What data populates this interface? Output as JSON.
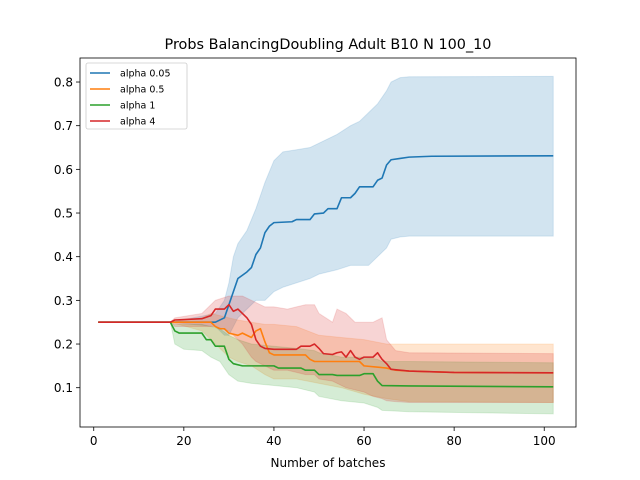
{
  "chart_data": {
    "type": "line",
    "title": "Probs BalancingDoubling Adult B10 N 100_10",
    "xlabel": "Number of batches",
    "ylabel": "",
    "xlim": [
      -3.05,
      107.05
    ],
    "ylim": [
      0.01,
      0.855
    ],
    "xticks": [
      0,
      20,
      40,
      60,
      80,
      100
    ],
    "yticks": [
      0.1,
      0.2,
      0.3,
      0.4,
      0.5,
      0.6,
      0.7,
      0.8
    ],
    "legend": {
      "placement": "top-left"
    },
    "grid": false,
    "series": [
      {
        "name": "alpha 0.05",
        "color": "#1f77b4",
        "mean": [
          [
            1,
            0.25
          ],
          [
            17,
            0.25
          ],
          [
            27,
            0.25
          ],
          [
            29,
            0.26
          ],
          [
            30,
            0.29
          ],
          [
            31,
            0.32
          ],
          [
            32,
            0.35
          ],
          [
            34,
            0.365
          ],
          [
            35,
            0.375
          ],
          [
            36,
            0.405
          ],
          [
            37,
            0.42
          ],
          [
            38,
            0.455
          ],
          [
            39,
            0.47
          ],
          [
            40,
            0.478
          ],
          [
            44,
            0.48
          ],
          [
            45,
            0.485
          ],
          [
            48,
            0.485
          ],
          [
            49,
            0.498
          ],
          [
            51,
            0.5
          ],
          [
            52,
            0.51
          ],
          [
            54,
            0.51
          ],
          [
            55,
            0.535
          ],
          [
            57,
            0.535
          ],
          [
            58,
            0.545
          ],
          [
            59,
            0.56
          ],
          [
            62,
            0.56
          ],
          [
            63,
            0.575
          ],
          [
            64,
            0.58
          ],
          [
            65,
            0.61
          ],
          [
            66,
            0.622
          ],
          [
            68,
            0.625
          ],
          [
            70,
            0.628
          ],
          [
            75,
            0.63
          ],
          [
            102,
            0.631
          ]
        ],
        "band": [
          [
            1,
            0.25,
            0.25
          ],
          [
            17,
            0.25,
            0.25
          ],
          [
            27,
            0.24,
            0.27
          ],
          [
            29,
            0.22,
            0.3
          ],
          [
            30,
            0.22,
            0.34
          ],
          [
            31,
            0.24,
            0.4
          ],
          [
            32,
            0.26,
            0.43
          ],
          [
            34,
            0.28,
            0.46
          ],
          [
            36,
            0.3,
            0.51
          ],
          [
            38,
            0.3,
            0.57
          ],
          [
            40,
            0.32,
            0.62
          ],
          [
            42,
            0.33,
            0.64
          ],
          [
            45,
            0.34,
            0.645
          ],
          [
            48,
            0.35,
            0.65
          ],
          [
            50,
            0.36,
            0.66
          ],
          [
            54,
            0.37,
            0.68
          ],
          [
            57,
            0.38,
            0.7
          ],
          [
            59,
            0.38,
            0.71
          ],
          [
            61,
            0.38,
            0.73
          ],
          [
            63,
            0.4,
            0.75
          ],
          [
            65,
            0.42,
            0.78
          ],
          [
            66,
            0.44,
            0.8
          ],
          [
            68,
            0.445,
            0.81
          ],
          [
            70,
            0.447,
            0.812
          ],
          [
            102,
            0.447,
            0.813
          ]
        ]
      },
      {
        "name": "alpha 0.5",
        "color": "#ff7f0e",
        "mean": [
          [
            1,
            0.25
          ],
          [
            17,
            0.25
          ],
          [
            24,
            0.25
          ],
          [
            26,
            0.25
          ],
          [
            27,
            0.24
          ],
          [
            28,
            0.235
          ],
          [
            29,
            0.235
          ],
          [
            30,
            0.225
          ],
          [
            32,
            0.22
          ],
          [
            33,
            0.225
          ],
          [
            35,
            0.215
          ],
          [
            36,
            0.23
          ],
          [
            37,
            0.235
          ],
          [
            38,
            0.205
          ],
          [
            39,
            0.18
          ],
          [
            40,
            0.175
          ],
          [
            47,
            0.175
          ],
          [
            48,
            0.165
          ],
          [
            49,
            0.16
          ],
          [
            59,
            0.16
          ],
          [
            60,
            0.15
          ],
          [
            65,
            0.145
          ],
          [
            67,
            0.14
          ],
          [
            70,
            0.138
          ],
          [
            80,
            0.135
          ],
          [
            102,
            0.134
          ]
        ],
        "band": [
          [
            1,
            0.25,
            0.25
          ],
          [
            17,
            0.25,
            0.25
          ],
          [
            24,
            0.23,
            0.26
          ],
          [
            26,
            0.21,
            0.27
          ],
          [
            28,
            0.19,
            0.265
          ],
          [
            30,
            0.17,
            0.26
          ],
          [
            32,
            0.16,
            0.255
          ],
          [
            35,
            0.15,
            0.25
          ],
          [
            38,
            0.13,
            0.245
          ],
          [
            40,
            0.12,
            0.245
          ],
          [
            45,
            0.12,
            0.24
          ],
          [
            50,
            0.11,
            0.22
          ],
          [
            55,
            0.1,
            0.215
          ],
          [
            60,
            0.085,
            0.21
          ],
          [
            65,
            0.075,
            0.2
          ],
          [
            70,
            0.068,
            0.2
          ],
          [
            102,
            0.066,
            0.2
          ]
        ]
      },
      {
        "name": "alpha 1",
        "color": "#2ca02c",
        "mean": [
          [
            1,
            0.25
          ],
          [
            17,
            0.25
          ],
          [
            18,
            0.23
          ],
          [
            19,
            0.225
          ],
          [
            24,
            0.225
          ],
          [
            25,
            0.21
          ],
          [
            26,
            0.21
          ],
          [
            27,
            0.195
          ],
          [
            29,
            0.195
          ],
          [
            30,
            0.165
          ],
          [
            31,
            0.155
          ],
          [
            33,
            0.15
          ],
          [
            40,
            0.15
          ],
          [
            41,
            0.145
          ],
          [
            46,
            0.145
          ],
          [
            47,
            0.14
          ],
          [
            49,
            0.14
          ],
          [
            50,
            0.13
          ],
          [
            53,
            0.13
          ],
          [
            54,
            0.128
          ],
          [
            59,
            0.128
          ],
          [
            60,
            0.132
          ],
          [
            62,
            0.132
          ],
          [
            63,
            0.115
          ],
          [
            64,
            0.105
          ],
          [
            70,
            0.104
          ],
          [
            102,
            0.102
          ]
        ],
        "band": [
          [
            1,
            0.25,
            0.25
          ],
          [
            17,
            0.25,
            0.25
          ],
          [
            18,
            0.2,
            0.245
          ],
          [
            20,
            0.188,
            0.245
          ],
          [
            24,
            0.185,
            0.245
          ],
          [
            26,
            0.17,
            0.24
          ],
          [
            28,
            0.16,
            0.235
          ],
          [
            30,
            0.13,
            0.22
          ],
          [
            32,
            0.115,
            0.21
          ],
          [
            35,
            0.11,
            0.2
          ],
          [
            40,
            0.105,
            0.195
          ],
          [
            45,
            0.1,
            0.19
          ],
          [
            49,
            0.09,
            0.185
          ],
          [
            50,
            0.08,
            0.18
          ],
          [
            55,
            0.07,
            0.17
          ],
          [
            60,
            0.065,
            0.17
          ],
          [
            63,
            0.055,
            0.165
          ],
          [
            64,
            0.048,
            0.16
          ],
          [
            70,
            0.045,
            0.16
          ],
          [
            102,
            0.04,
            0.157
          ]
        ]
      },
      {
        "name": "alpha 4",
        "color": "#d62728",
        "mean": [
          [
            1,
            0.25
          ],
          [
            17,
            0.25
          ],
          [
            18,
            0.255
          ],
          [
            24,
            0.258
          ],
          [
            26,
            0.265
          ],
          [
            27,
            0.28
          ],
          [
            29,
            0.28
          ],
          [
            30,
            0.29
          ],
          [
            31,
            0.275
          ],
          [
            32,
            0.28
          ],
          [
            33,
            0.27
          ],
          [
            34,
            0.26
          ],
          [
            35,
            0.245
          ],
          [
            36,
            0.21
          ],
          [
            37,
            0.195
          ],
          [
            38,
            0.19
          ],
          [
            40,
            0.188
          ],
          [
            45,
            0.188
          ],
          [
            46,
            0.195
          ],
          [
            48,
            0.195
          ],
          [
            49,
            0.2
          ],
          [
            50,
            0.19
          ],
          [
            51,
            0.178
          ],
          [
            53,
            0.176
          ],
          [
            54,
            0.18
          ],
          [
            55,
            0.182
          ],
          [
            56,
            0.17
          ],
          [
            57,
            0.185
          ],
          [
            58,
            0.17
          ],
          [
            59,
            0.165
          ],
          [
            60,
            0.17
          ],
          [
            62,
            0.17
          ],
          [
            63,
            0.18
          ],
          [
            64,
            0.165
          ],
          [
            65,
            0.155
          ],
          [
            66,
            0.142
          ],
          [
            68,
            0.14
          ],
          [
            70,
            0.138
          ],
          [
            80,
            0.135
          ],
          [
            102,
            0.134
          ]
        ],
        "band": [
          [
            1,
            0.25,
            0.25
          ],
          [
            17,
            0.25,
            0.25
          ],
          [
            18,
            0.24,
            0.26
          ],
          [
            24,
            0.24,
            0.27
          ],
          [
            27,
            0.24,
            0.3
          ],
          [
            30,
            0.23,
            0.31
          ],
          [
            33,
            0.2,
            0.31
          ],
          [
            35,
            0.17,
            0.3
          ],
          [
            36,
            0.16,
            0.295
          ],
          [
            38,
            0.15,
            0.285
          ],
          [
            40,
            0.14,
            0.285
          ],
          [
            43,
            0.14,
            0.28
          ],
          [
            45,
            0.135,
            0.285
          ],
          [
            47,
            0.13,
            0.29
          ],
          [
            49,
            0.13,
            0.29
          ],
          [
            50,
            0.12,
            0.27
          ],
          [
            53,
            0.115,
            0.25
          ],
          [
            54,
            0.11,
            0.28
          ],
          [
            56,
            0.1,
            0.27
          ],
          [
            58,
            0.095,
            0.25
          ],
          [
            60,
            0.09,
            0.25
          ],
          [
            62,
            0.08,
            0.25
          ],
          [
            64,
            0.075,
            0.26
          ],
          [
            65,
            0.07,
            0.21
          ],
          [
            67,
            0.068,
            0.185
          ],
          [
            70,
            0.066,
            0.18
          ],
          [
            102,
            0.066,
            0.178
          ]
        ]
      }
    ]
  }
}
